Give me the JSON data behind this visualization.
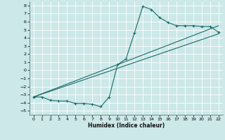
{
  "title": "",
  "xlabel": "Humidex (Indice chaleur)",
  "bg_color": "#cce8e8",
  "grid_color": "#ffffff",
  "line_color": "#1a6b6b",
  "ylim": [
    -5.5,
    8.5
  ],
  "xlim": [
    -0.5,
    22.5
  ],
  "yticks": [
    -5,
    -4,
    -3,
    -2,
    -1,
    0,
    1,
    2,
    3,
    4,
    5,
    6,
    7,
    8
  ],
  "xticks": [
    0,
    1,
    2,
    3,
    4,
    5,
    6,
    7,
    8,
    9,
    10,
    11,
    12,
    13,
    14,
    15,
    16,
    17,
    18,
    19,
    20,
    21,
    22
  ],
  "line1_x": [
    0,
    1,
    2,
    3,
    4,
    5,
    6,
    7,
    8,
    9,
    10,
    11,
    12,
    13,
    14,
    15,
    16,
    17,
    18,
    19,
    20,
    21,
    22
  ],
  "line1_y": [
    -3.3,
    -3.3,
    -3.7,
    -3.8,
    -3.8,
    -4.1,
    -4.1,
    -4.2,
    -4.5,
    -3.3,
    0.7,
    1.4,
    4.6,
    7.9,
    7.5,
    6.5,
    5.9,
    5.5,
    5.5,
    5.5,
    5.4,
    5.4,
    4.7
  ],
  "line2_x": [
    0,
    22
  ],
  "line2_y": [
    -3.3,
    4.5
  ],
  "line3_x": [
    0,
    22
  ],
  "line3_y": [
    -3.3,
    5.5
  ]
}
